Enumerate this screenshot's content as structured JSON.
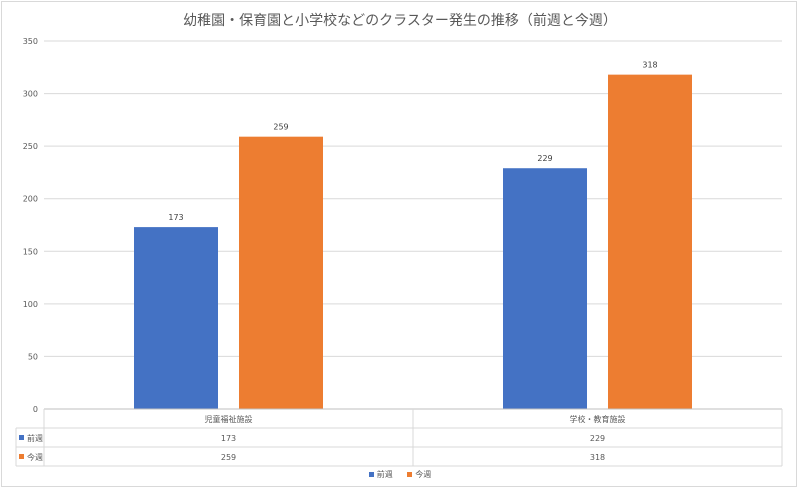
{
  "chart_data": {
    "type": "bar",
    "title": "幼稚園・保育園と小学校などのクラスター発生の推移（前週と今週）",
    "categories": [
      "児童福祉施設",
      "学校・教育施設"
    ],
    "series": [
      {
        "name": "前週",
        "values": [
          173,
          229
        ],
        "color": "#4472c4"
      },
      {
        "name": "今週",
        "values": [
          259,
          318
        ],
        "color": "#ed7d31"
      }
    ],
    "ylim": [
      0,
      350
    ],
    "yticks": [
      "0",
      "50",
      "100",
      "150",
      "200",
      "250",
      "300",
      "350"
    ],
    "grid": true,
    "legend": "bottom",
    "data_table": true
  }
}
